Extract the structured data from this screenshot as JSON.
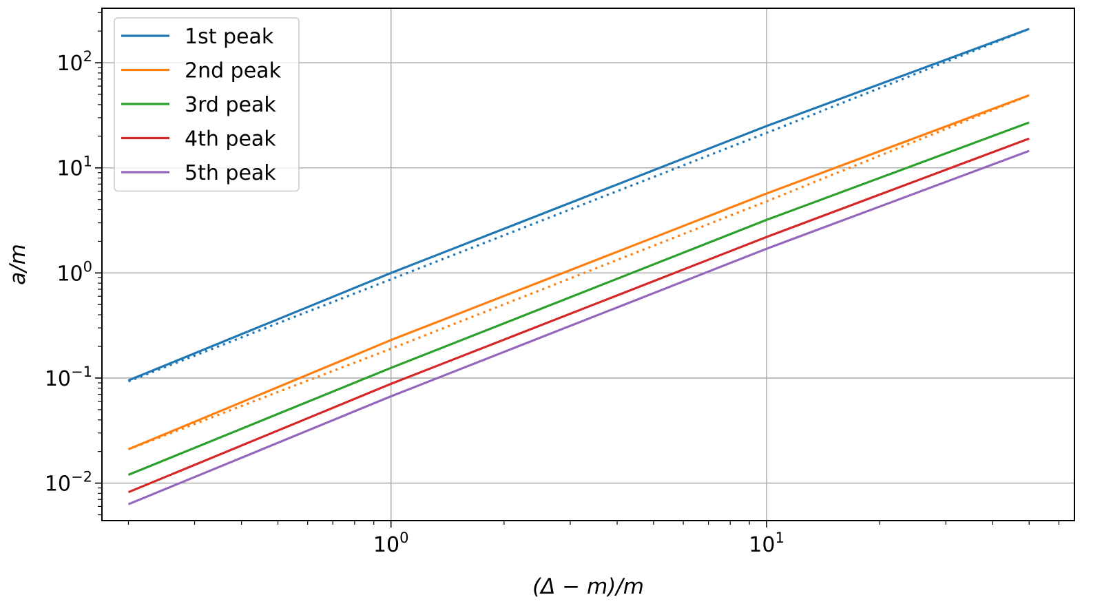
{
  "chart_data": {
    "type": "line",
    "title": "",
    "xlabel": "(Δ − m)/m",
    "ylabel": "a/m",
    "xscale": "log",
    "yscale": "log",
    "xlim": [
      0.17,
      66
    ],
    "ylim": [
      0.0044,
      330
    ],
    "grid": true,
    "legend_position": "top-left",
    "x_ticks": [
      {
        "base": "10",
        "exp": "0",
        "value": 1
      },
      {
        "base": "10",
        "exp": "1",
        "value": 10
      }
    ],
    "y_ticks": [
      {
        "base": "10",
        "exp": "−2",
        "value": 0.01
      },
      {
        "base": "10",
        "exp": "−1",
        "value": 0.1
      },
      {
        "base": "10",
        "exp": "0",
        "value": 1
      },
      {
        "base": "10",
        "exp": "1",
        "value": 10
      },
      {
        "base": "10",
        "exp": "2",
        "value": 100
      }
    ],
    "series": [
      {
        "name": "1st peak",
        "color": "#1f77b4",
        "x": [
          0.2,
          1,
          10,
          50
        ],
        "y": [
          0.095,
          1.0,
          25.0,
          210.0
        ],
        "dotted": {
          "x": [
            0.2,
            1,
            10,
            50
          ],
          "y": [
            0.093,
            0.87,
            21.5,
            210.0
          ]
        }
      },
      {
        "name": "2nd peak",
        "color": "#ff7f0e",
        "x": [
          0.2,
          1,
          10,
          50
        ],
        "y": [
          0.021,
          0.23,
          5.7,
          49.0
        ],
        "dotted": {
          "x": [
            0.2,
            1,
            10,
            50
          ],
          "y": [
            0.021,
            0.19,
            4.8,
            49.0
          ]
        }
      },
      {
        "name": "3rd peak",
        "color": "#2ca02c",
        "x": [
          0.2,
          1,
          10,
          50
        ],
        "y": [
          0.012,
          0.125,
          3.2,
          27.0
        ]
      },
      {
        "name": "4th peak",
        "color": "#d62728",
        "x": [
          0.2,
          1,
          10,
          50
        ],
        "y": [
          0.0082,
          0.088,
          2.2,
          19.0
        ]
      },
      {
        "name": "5th peak",
        "color": "#9467bd",
        "x": [
          0.2,
          1,
          10,
          50
        ],
        "y": [
          0.0063,
          0.067,
          1.7,
          14.5
        ]
      }
    ]
  }
}
